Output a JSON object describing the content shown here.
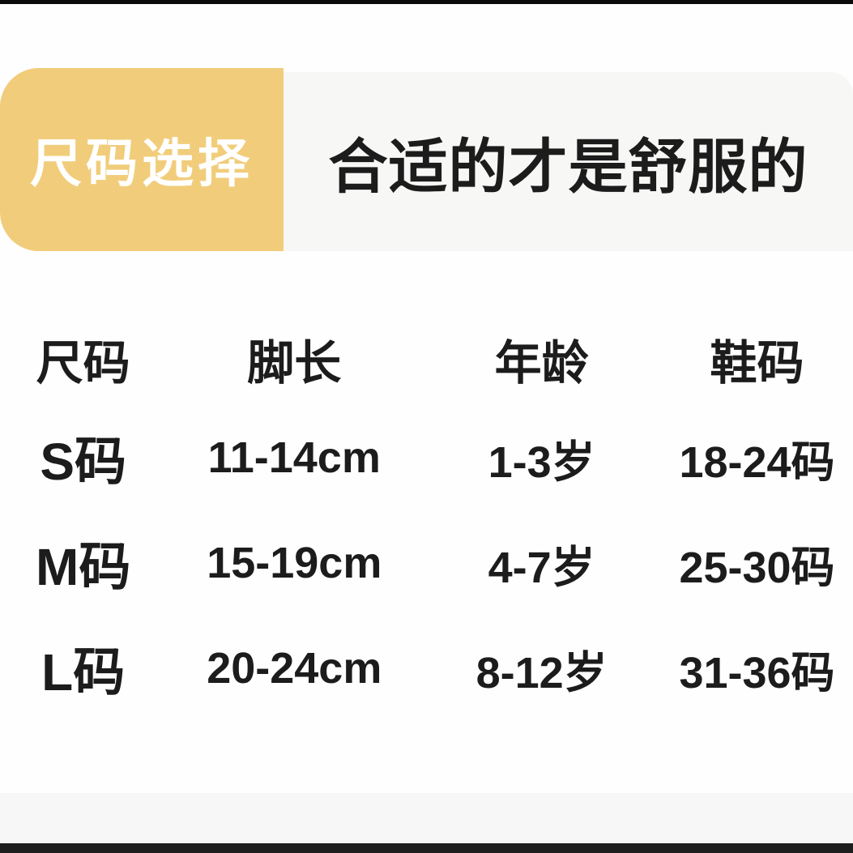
{
  "theme": {
    "page_bg": "#FEFEFE",
    "badge_bg": "#F1CD7B",
    "badge_text_color": "#FFFFFF",
    "strip_bg": "#F7F7F5",
    "text_color": "#1C1C1C",
    "bottom_band_bg": "#F7F7F7",
    "letterbox_top": "#0B0B0B",
    "letterbox_bottom": "#1E1E1E"
  },
  "header": {
    "badge_label": "尺码选择",
    "headline": "合适的才是舒服的"
  },
  "size_table": {
    "columns": [
      "尺码",
      "脚长",
      "年龄",
      "鞋码"
    ],
    "rows": [
      {
        "size": "S码",
        "foot_length": "11-14cm",
        "age": "1-3岁",
        "shoe_size": "18-24码"
      },
      {
        "size": "M码",
        "foot_length": "15-19cm",
        "age": "4-7岁",
        "shoe_size": "25-30码"
      },
      {
        "size": "L码",
        "foot_length": "20-24cm",
        "age": "8-12岁",
        "shoe_size": "31-36码"
      }
    ]
  }
}
